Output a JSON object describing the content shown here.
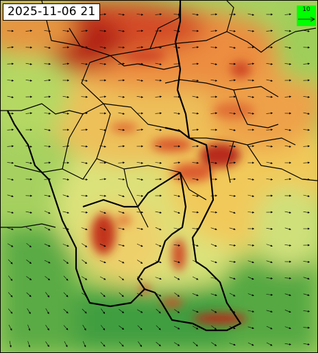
{
  "header": {
    "timestamp": "2025-11-06 21"
  },
  "legend": {
    "reference_value": "10",
    "background_color": "#00ff00",
    "arrow_direction": "east"
  },
  "map": {
    "field_palette": [
      "#3c9a3c",
      "#8cc75a",
      "#d8e27a",
      "#f2cc5e",
      "#ec8b3e",
      "#cf4a28",
      "#a31616"
    ],
    "boundary_color": "#000000",
    "vector_color": "#000000",
    "icons": [
      "wind-vector-arrow-icon"
    ]
  }
}
